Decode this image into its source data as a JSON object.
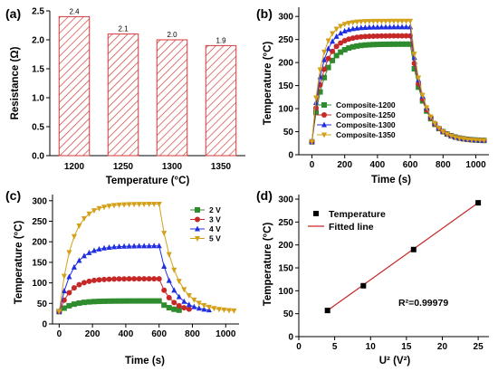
{
  "chart_data": [
    {
      "type": "bar",
      "panel": "(a)",
      "categories": [
        "1200",
        "1250",
        "1300",
        "1350"
      ],
      "values": [
        2.4,
        2.1,
        2.0,
        1.9
      ],
      "value_labels": [
        "2.4",
        "2.1",
        "2.0",
        "1.9"
      ],
      "xlabel": "Temperature (°C)",
      "ylabel": "Resistance (Ω)",
      "ylim": [
        0,
        2.5
      ],
      "yticks": [
        "0.0",
        "0.5",
        "1.0",
        "1.5",
        "2.0",
        "2.5"
      ],
      "bar_style": "red diagonal hatch"
    },
    {
      "type": "line",
      "panel": "(b)",
      "xlabel": "Time (s)",
      "ylabel": "Temperature (°C)",
      "xlim": [
        -80,
        1080
      ],
      "ylim": [
        0,
        320
      ],
      "xticks": [
        "0",
        "200",
        "400",
        "600",
        "800",
        "1000"
      ],
      "yticks": [
        "0",
        "50",
        "100",
        "150",
        "200",
        "250",
        "300"
      ],
      "legend_position": "bottom-right",
      "series": [
        {
          "name": "Composite-1200",
          "color": "#2e8b2e",
          "marker": "square",
          "T_max": 240
        },
        {
          "name": "Composite-1250",
          "color": "#c62828",
          "marker": "circle",
          "T_max": 258
        },
        {
          "name": "Composite-1300",
          "color": "#1f2ee0",
          "marker": "triangle",
          "T_max": 277
        },
        {
          "name": "Composite-1350",
          "color": "#d4a017",
          "marker": "tri-down",
          "T_max": 290
        }
      ]
    },
    {
      "type": "line",
      "panel": "(c)",
      "xlabel": "Time (s)",
      "ylabel": "Temperature (°C)",
      "xlim": [
        -40,
        1080
      ],
      "ylim": [
        0,
        315
      ],
      "xticks": [
        "0",
        "200",
        "400",
        "600",
        "800",
        "1000"
      ],
      "yticks": [
        "0",
        "50",
        "100",
        "150",
        "200",
        "250",
        "300"
      ],
      "legend_position": "top-right",
      "series": [
        {
          "name": "2 V",
          "color": "#2e8b2e",
          "marker": "square",
          "T_max": 56,
          "t_end": 720
        },
        {
          "name": "3 V",
          "color": "#c62828",
          "marker": "circle",
          "T_max": 110,
          "t_end": 780
        },
        {
          "name": "4 V",
          "color": "#1f2ee0",
          "marker": "triangle",
          "T_max": 190,
          "t_end": 900
        },
        {
          "name": "5 V",
          "color": "#d4a017",
          "marker": "tri-down",
          "T_max": 292,
          "t_end": 1050
        }
      ]
    },
    {
      "type": "scatter",
      "panel": "(d)",
      "xlabel": "U² (V²)",
      "ylabel": "Temperature (°C)",
      "xlim": [
        0,
        26.5
      ],
      "ylim": [
        0,
        310
      ],
      "xticks": [
        "0",
        "5",
        "10",
        "15",
        "20",
        "25"
      ],
      "yticks": [
        "0",
        "50",
        "100",
        "150",
        "200",
        "250",
        "300"
      ],
      "legend_position": "top-left",
      "series": [
        {
          "name": "Temperature",
          "color": "#000000",
          "marker": "square",
          "x": [
            4,
            9,
            16,
            25
          ],
          "y": [
            57,
            111,
            190,
            292
          ]
        },
        {
          "name": "Fitted line",
          "color": "#c62828",
          "type": "line",
          "x": [
            4,
            25
          ],
          "y": [
            57,
            292
          ]
        }
      ],
      "annotation": "R²=0.99979"
    }
  ]
}
